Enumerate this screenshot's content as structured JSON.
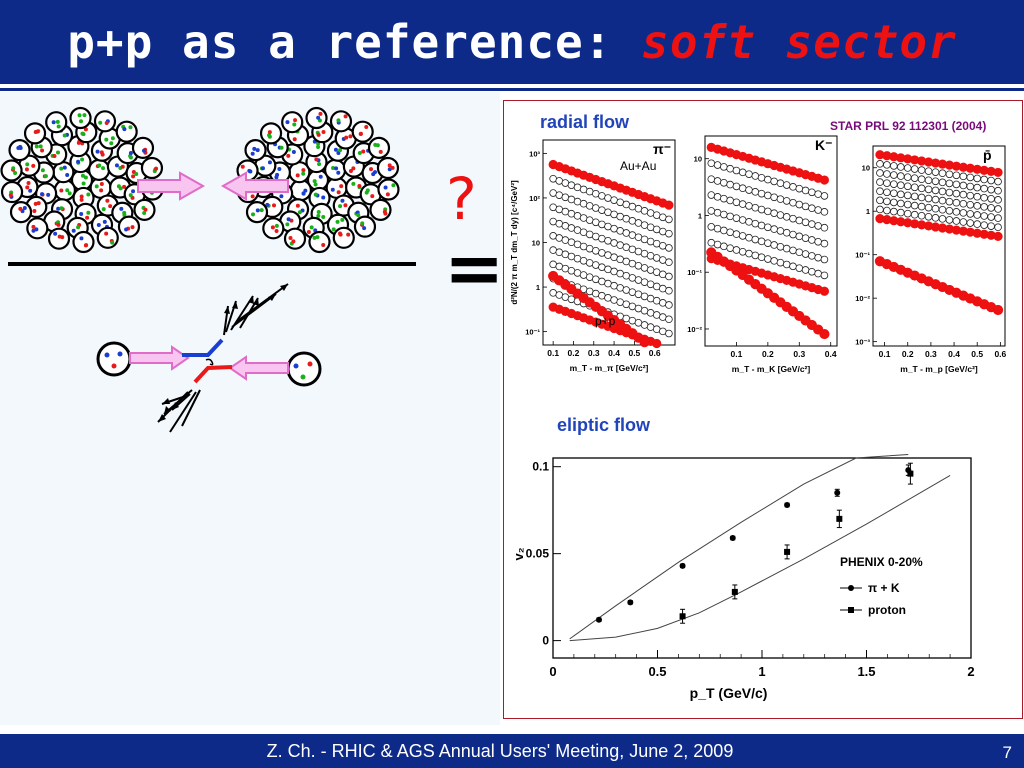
{
  "slide": {
    "title_white": "p+p as a reference:",
    "title_red": "soft sector",
    "footer": "Z. Ch. - RHIC & AGS Annual Users' Meeting, June 2, 2009",
    "page_number": "7",
    "question_mark": "?",
    "equals": "=",
    "colors": {
      "title_bar": "#0d2a88",
      "title_red": "#ee1111",
      "label_blue": "#2244bb",
      "arrow_pink": "#f7c5f0"
    }
  },
  "radial_flow": {
    "label": "radial flow",
    "source": "STAR PRL 92 112301 (2004)"
  },
  "elliptic_flow": {
    "label": "eliptic flow"
  },
  "chart_data": [
    {
      "type": "scatter",
      "name": "pi-",
      "particle_label": "π⁻",
      "annotations": [
        "Au+Au",
        "p+p"
      ],
      "ylabel": "d²N/(2 π m_T dm_T dy) [c⁴/GeV²]",
      "xlabel": "m_T - m_π [GeV/c²]",
      "x_ticks": [
        "0.1",
        "0.2",
        "0.3",
        "0.4",
        "0.5",
        "0.6"
      ],
      "y_ticks": [
        "10⁻¹",
        "1",
        "10",
        "10²",
        "10³"
      ],
      "xlim": [
        0.05,
        0.7
      ],
      "ylim_log10": [
        -1.3,
        3.3
      ],
      "x": [
        0.1,
        0.13,
        0.16,
        0.19,
        0.22,
        0.25,
        0.28,
        0.31,
        0.34,
        0.37,
        0.4,
        0.43,
        0.46,
        0.49,
        0.52,
        0.55,
        0.58,
        0.61,
        0.64,
        0.67
      ],
      "aa_series": {
        "count": 11,
        "top_start_log10": 2.75,
        "step_log10": -0.32,
        "slope_log10": -1.6
      },
      "pp_start_log10": 0.25,
      "pp_slope_log10": -3.3
    },
    {
      "type": "scatter",
      "name": "K-",
      "particle_label": "K⁻",
      "xlabel": "m_T - m_K [GeV/c²]",
      "x_ticks": [
        "0.1",
        "0.2",
        "0.3",
        "0.4"
      ],
      "y_ticks": [
        "10⁻²",
        "10⁻¹",
        "1",
        "10"
      ],
      "xlim": [
        0.0,
        0.42
      ],
      "ylim_log10": [
        -2.3,
        1.4
      ],
      "x": [
        0.02,
        0.04,
        0.06,
        0.08,
        0.1,
        0.12,
        0.14,
        0.16,
        0.18,
        0.2,
        0.22,
        0.24,
        0.26,
        0.28,
        0.3,
        0.32,
        0.34,
        0.36,
        0.38
      ],
      "aa_series": {
        "count": 8,
        "top_start_log10": 1.2,
        "step_log10": -0.28,
        "slope_log10": -1.6
      },
      "pp_start_log10": -0.65,
      "pp_slope_log10": -4.0
    },
    {
      "type": "scatter",
      "name": "pbar",
      "particle_label": "p̄",
      "xlabel": "m_T - m_p [GeV/c²]",
      "x_ticks": [
        "0.1",
        "0.2",
        "0.3",
        "0.4",
        "0.5",
        "0.6"
      ],
      "y_ticks": [
        "10⁻³",
        "10⁻²",
        "10⁻¹",
        "1",
        "10"
      ],
      "xlim": [
        0.05,
        0.62
      ],
      "ylim_log10": [
        -3.1,
        1.5
      ],
      "x": [
        0.08,
        0.11,
        0.14,
        0.17,
        0.2,
        0.23,
        0.26,
        0.29,
        0.32,
        0.35,
        0.38,
        0.41,
        0.44,
        0.47,
        0.5,
        0.53,
        0.56,
        0.59
      ],
      "aa_series": {
        "count": 8,
        "top_start_log10": 1.3,
        "step_log10": -0.21,
        "slope_log10": -0.8
      },
      "pp_start_log10": -1.15,
      "pp_slope_log10": -2.2
    },
    {
      "type": "scatter",
      "title": "PHENIX 0-20%",
      "xlabel": "p_T (GeV/c)",
      "ylabel": "v₂",
      "xlim": [
        0,
        2
      ],
      "ylim": [
        -0.01,
        0.105
      ],
      "x_ticks": [
        "0",
        "0.5",
        "1",
        "1.5",
        "2"
      ],
      "y_ticks": [
        "0",
        "0.05",
        "0.1"
      ],
      "series": [
        {
          "name": "π + K",
          "marker": "circle",
          "x": [
            0.22,
            0.37,
            0.62,
            0.86,
            1.12,
            1.36,
            1.7
          ],
          "y": [
            0.012,
            0.022,
            0.043,
            0.059,
            0.078,
            0.085,
            0.098
          ],
          "err": [
            0.001,
            0.001,
            0.001,
            0.001,
            0.001,
            0.002,
            0.003
          ]
        },
        {
          "name": "proton",
          "marker": "square",
          "x": [
            0.62,
            0.87,
            1.12,
            1.37,
            1.71
          ],
          "y": [
            0.014,
            0.028,
            0.051,
            0.07,
            0.096
          ],
          "err": [
            0.004,
            0.004,
            0.004,
            0.005,
            0.006
          ]
        }
      ],
      "curves": [
        {
          "x": [
            0.08,
            0.3,
            0.6,
            0.9,
            1.2,
            1.45,
            1.7
          ],
          "y": [
            0.001,
            0.02,
            0.045,
            0.068,
            0.09,
            0.105,
            0.115
          ]
        },
        {
          "x": [
            0.08,
            0.3,
            0.5,
            0.7,
            0.9,
            1.2,
            1.5,
            1.9
          ],
          "y": [
            0.0,
            0.002,
            0.007,
            0.016,
            0.028,
            0.047,
            0.067,
            0.095
          ]
        }
      ]
    }
  ]
}
